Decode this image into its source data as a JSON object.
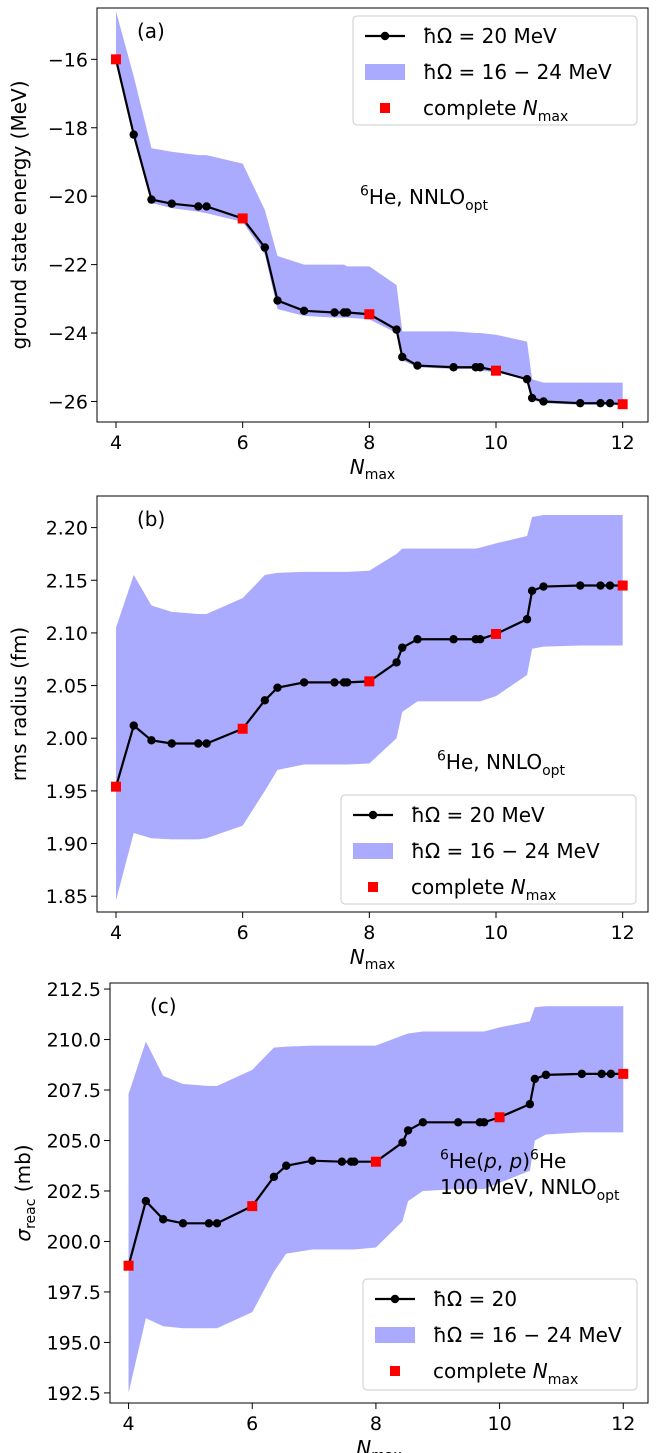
{
  "chart_data": [
    {
      "type": "line",
      "panel_label": "(a)",
      "xlabel": "N",
      "xlabel_sub": "max",
      "ylabel": "ground state energy (MeV)",
      "xlim": [
        3.7,
        12.4
      ],
      "ylim": [
        -26.6,
        -14.5
      ],
      "xticks": [
        4,
        6,
        8,
        10,
        12
      ],
      "yticks": [
        -26,
        -24,
        -22,
        -20,
        -18,
        -16
      ],
      "tick_decimals": 0,
      "grid": false,
      "annotation": [
        [
          {
            "t": "6",
            "s": "sup"
          },
          {
            "t": "He, NNLO"
          },
          {
            "t": "opt",
            "s": "sub"
          }
        ]
      ],
      "legend": {
        "placement": "top-right",
        "entries": [
          [
            {
              "t": "ħΩ = 20 MeV"
            }
          ],
          [
            {
              "t": "ħΩ = 16 − 24 MeV"
            }
          ],
          [
            {
              "t": "complete "
            },
            {
              "t": "N",
              "s": "it"
            },
            {
              "t": "max",
              "s": "sub"
            }
          ]
        ]
      },
      "series": [
        {
          "name": "ħΩ = 20 MeV",
          "style": "line-marker",
          "x": [
            4,
            4.28,
            4.56,
            4.88,
            5.3,
            5.43,
            6,
            6.35,
            6.55,
            6.97,
            7.45,
            7.6,
            7.65,
            8,
            8.43,
            8.52,
            8.76,
            9.33,
            9.68,
            9.75,
            10,
            10.49,
            10.57,
            10.75,
            11.33,
            11.65,
            11.8,
            12
          ],
          "y": [
            -16.0,
            -18.2,
            -20.1,
            -20.22,
            -20.3,
            -20.3,
            -20.65,
            -21.5,
            -23.05,
            -23.35,
            -23.4,
            -23.4,
            -23.4,
            -23.45,
            -23.9,
            -24.7,
            -24.95,
            -25.0,
            -25.0,
            -25.0,
            -25.1,
            -25.35,
            -25.9,
            -26.0,
            -26.05,
            -26.05,
            -26.05,
            -26.08
          ]
        },
        {
          "name": "ħΩ = 16 − 24 MeV",
          "style": "band",
          "x": [
            4,
            4.28,
            4.56,
            4.88,
            5.3,
            5.43,
            6,
            6.35,
            6.55,
            6.97,
            7.45,
            7.6,
            7.65,
            8,
            8.43,
            8.52,
            8.76,
            9.33,
            9.68,
            9.75,
            10,
            10.49,
            10.57,
            10.75,
            11.33,
            11.65,
            11.8,
            12
          ],
          "lower": [
            -16.1,
            -18.3,
            -20.2,
            -20.35,
            -20.45,
            -20.5,
            -20.75,
            -21.7,
            -23.3,
            -23.5,
            -23.55,
            -23.55,
            -23.55,
            -23.6,
            -24.0,
            -24.8,
            -25.0,
            -25.05,
            -25.05,
            -25.1,
            -25.15,
            -25.35,
            -25.95,
            -26.05,
            -26.1,
            -26.1,
            -26.1,
            -26.1
          ],
          "upper": [
            -14.6,
            -16.5,
            -18.6,
            -18.7,
            -18.8,
            -18.8,
            -19.05,
            -20.4,
            -21.75,
            -22.0,
            -22.0,
            -22.0,
            -22.05,
            -22.05,
            -22.6,
            -23.95,
            -23.95,
            -23.95,
            -24.0,
            -24.0,
            -24.05,
            -24.25,
            -25.35,
            -25.45,
            -25.45,
            -25.45,
            -25.45,
            -25.45
          ]
        },
        {
          "name": "complete Nmax",
          "style": "square",
          "x": [
            4,
            6,
            8,
            10,
            12
          ],
          "y": [
            -16.0,
            -20.65,
            -23.45,
            -25.1,
            -26.08
          ]
        }
      ]
    },
    {
      "type": "line",
      "panel_label": "(b)",
      "xlabel": "N",
      "xlabel_sub": "max",
      "ylabel": "rms radius (fm)",
      "xlim": [
        3.7,
        12.4
      ],
      "ylim": [
        1.835,
        2.23
      ],
      "xticks": [
        4,
        6,
        8,
        10,
        12
      ],
      "yticks": [
        1.85,
        1.9,
        1.95,
        2.0,
        2.05,
        2.1,
        2.15,
        2.2
      ],
      "tick_decimals": 2,
      "grid": false,
      "annotation": [
        [
          {
            "t": "6",
            "s": "sup"
          },
          {
            "t": "He, NNLO"
          },
          {
            "t": "opt",
            "s": "sub"
          }
        ]
      ],
      "legend": {
        "placement": "bottom-right",
        "entries": [
          [
            {
              "t": "ħΩ = 20 MeV"
            }
          ],
          [
            {
              "t": "ħΩ = 16 − 24 MeV"
            }
          ],
          [
            {
              "t": "complete "
            },
            {
              "t": "N",
              "s": "it"
            },
            {
              "t": "max",
              "s": "sub"
            }
          ]
        ]
      },
      "series": [
        {
          "name": "ħΩ = 20 MeV",
          "style": "line-marker",
          "x": [
            4,
            4.28,
            4.56,
            4.88,
            5.3,
            5.43,
            6,
            6.35,
            6.55,
            6.97,
            7.45,
            7.6,
            7.65,
            8,
            8.43,
            8.52,
            8.76,
            9.33,
            9.68,
            9.75,
            10,
            10.49,
            10.57,
            10.75,
            11.33,
            11.65,
            11.8,
            12
          ],
          "y": [
            1.954,
            2.012,
            1.998,
            1.995,
            1.995,
            1.995,
            2.009,
            2.036,
            2.048,
            2.053,
            2.053,
            2.053,
            2.053,
            2.054,
            2.072,
            2.086,
            2.094,
            2.094,
            2.094,
            2.094,
            2.099,
            2.113,
            2.14,
            2.144,
            2.145,
            2.145,
            2.145,
            2.145
          ]
        },
        {
          "name": "ħΩ = 16 − 24 MeV",
          "style": "band",
          "x": [
            4,
            4.28,
            4.56,
            4.88,
            5.3,
            5.43,
            6,
            6.35,
            6.55,
            6.97,
            7.45,
            7.6,
            7.65,
            8,
            8.43,
            8.52,
            8.76,
            9.33,
            9.68,
            9.75,
            10,
            10.49,
            10.57,
            10.75,
            11.33,
            11.65,
            11.8,
            12
          ],
          "lower": [
            1.846,
            1.91,
            1.905,
            1.904,
            1.904,
            1.905,
            1.917,
            1.95,
            1.97,
            1.975,
            1.975,
            1.975,
            1.975,
            1.976,
            2.0,
            2.025,
            2.035,
            2.035,
            2.035,
            2.035,
            2.04,
            2.06,
            2.085,
            2.087,
            2.088,
            2.088,
            2.088,
            2.088
          ],
          "upper": [
            2.105,
            2.155,
            2.126,
            2.12,
            2.118,
            2.118,
            2.133,
            2.155,
            2.157,
            2.158,
            2.158,
            2.158,
            2.158,
            2.159,
            2.175,
            2.18,
            2.18,
            2.18,
            2.18,
            2.181,
            2.185,
            2.192,
            2.21,
            2.212,
            2.212,
            2.212,
            2.212,
            2.212
          ]
        },
        {
          "name": "complete Nmax",
          "style": "square",
          "x": [
            4,
            6,
            8,
            10,
            12
          ],
          "y": [
            1.954,
            2.009,
            2.054,
            2.099,
            2.145
          ]
        }
      ]
    },
    {
      "type": "line",
      "panel_label": "(c)",
      "xlabel": "N",
      "xlabel_sub": "max",
      "ylabel": "σ",
      "ylabel_sub": "reac",
      "ylabel_unit": " (mb)",
      "xlim": [
        3.7,
        12.4
      ],
      "ylim": [
        192.0,
        212.8
      ],
      "xticks": [
        4,
        6,
        8,
        10,
        12
      ],
      "yticks": [
        192.5,
        195.0,
        197.5,
        200.0,
        202.5,
        205.0,
        207.5,
        210.0,
        212.5
      ],
      "tick_decimals": 1,
      "grid": false,
      "annotation": [
        [
          {
            "t": "6",
            "s": "sup"
          },
          {
            "t": "He("
          },
          {
            "t": "p",
            "s": "it"
          },
          {
            "t": ", "
          },
          {
            "t": "p",
            "s": "it"
          },
          {
            "t": ")"
          },
          {
            "t": "6",
            "s": "sup"
          },
          {
            "t": "He"
          }
        ],
        [
          {
            "t": "100 MeV, NNLO"
          },
          {
            "t": "opt",
            "s": "sub"
          }
        ]
      ],
      "legend": {
        "placement": "bottom-right",
        "entries": [
          [
            {
              "t": "ħΩ = 20"
            }
          ],
          [
            {
              "t": "ħΩ = 16 − 24 MeV"
            }
          ],
          [
            {
              "t": "complete "
            },
            {
              "t": "N",
              "s": "it"
            },
            {
              "t": "max",
              "s": "sub"
            }
          ]
        ]
      },
      "series": [
        {
          "name": "ħΩ = 20",
          "style": "line-marker",
          "x": [
            4,
            4.28,
            4.56,
            4.88,
            5.3,
            5.43,
            6,
            6.35,
            6.55,
            6.97,
            7.45,
            7.6,
            7.65,
            8,
            8.43,
            8.52,
            8.76,
            9.33,
            9.68,
            9.75,
            10,
            10.49,
            10.57,
            10.75,
            11.33,
            11.65,
            11.8,
            12
          ],
          "y": [
            198.8,
            202.0,
            201.1,
            200.9,
            200.9,
            200.9,
            201.75,
            203.2,
            203.75,
            204.0,
            203.95,
            203.95,
            203.95,
            203.95,
            204.9,
            205.5,
            205.9,
            205.9,
            205.9,
            205.9,
            206.15,
            206.8,
            208.05,
            208.25,
            208.3,
            208.3,
            208.3,
            208.3
          ]
        },
        {
          "name": "ħΩ = 16 − 24 MeV",
          "style": "band",
          "x": [
            4,
            4.28,
            4.56,
            4.88,
            5.3,
            5.43,
            6,
            6.35,
            6.55,
            6.97,
            7.45,
            7.6,
            7.65,
            8,
            8.43,
            8.52,
            8.76,
            9.33,
            9.68,
            9.75,
            10,
            10.49,
            10.57,
            10.75,
            11.33,
            11.65,
            11.8,
            12
          ],
          "lower": [
            192.5,
            196.2,
            195.8,
            195.7,
            195.7,
            195.7,
            196.5,
            198.5,
            199.4,
            199.6,
            199.6,
            199.6,
            199.6,
            199.7,
            201.0,
            202.0,
            202.5,
            202.6,
            202.6,
            202.6,
            202.9,
            203.5,
            205.0,
            205.3,
            205.4,
            205.4,
            205.4,
            205.4
          ],
          "upper": [
            207.3,
            209.9,
            208.2,
            207.8,
            207.7,
            207.7,
            208.5,
            209.6,
            209.65,
            209.7,
            209.7,
            209.7,
            209.7,
            209.7,
            210.2,
            210.3,
            210.4,
            210.4,
            210.4,
            210.4,
            210.6,
            210.9,
            211.6,
            211.65,
            211.65,
            211.65,
            211.65,
            211.65
          ]
        },
        {
          "name": "complete Nmax",
          "style": "square",
          "x": [
            4,
            6,
            8,
            10,
            12
          ],
          "y": [
            198.8,
            201.75,
            203.95,
            206.15,
            208.3
          ]
        }
      ]
    }
  ],
  "colors": {
    "band": "#aaaaff",
    "line": "#000000",
    "square": "#ff0000",
    "legend_border": "#cccccc"
  }
}
